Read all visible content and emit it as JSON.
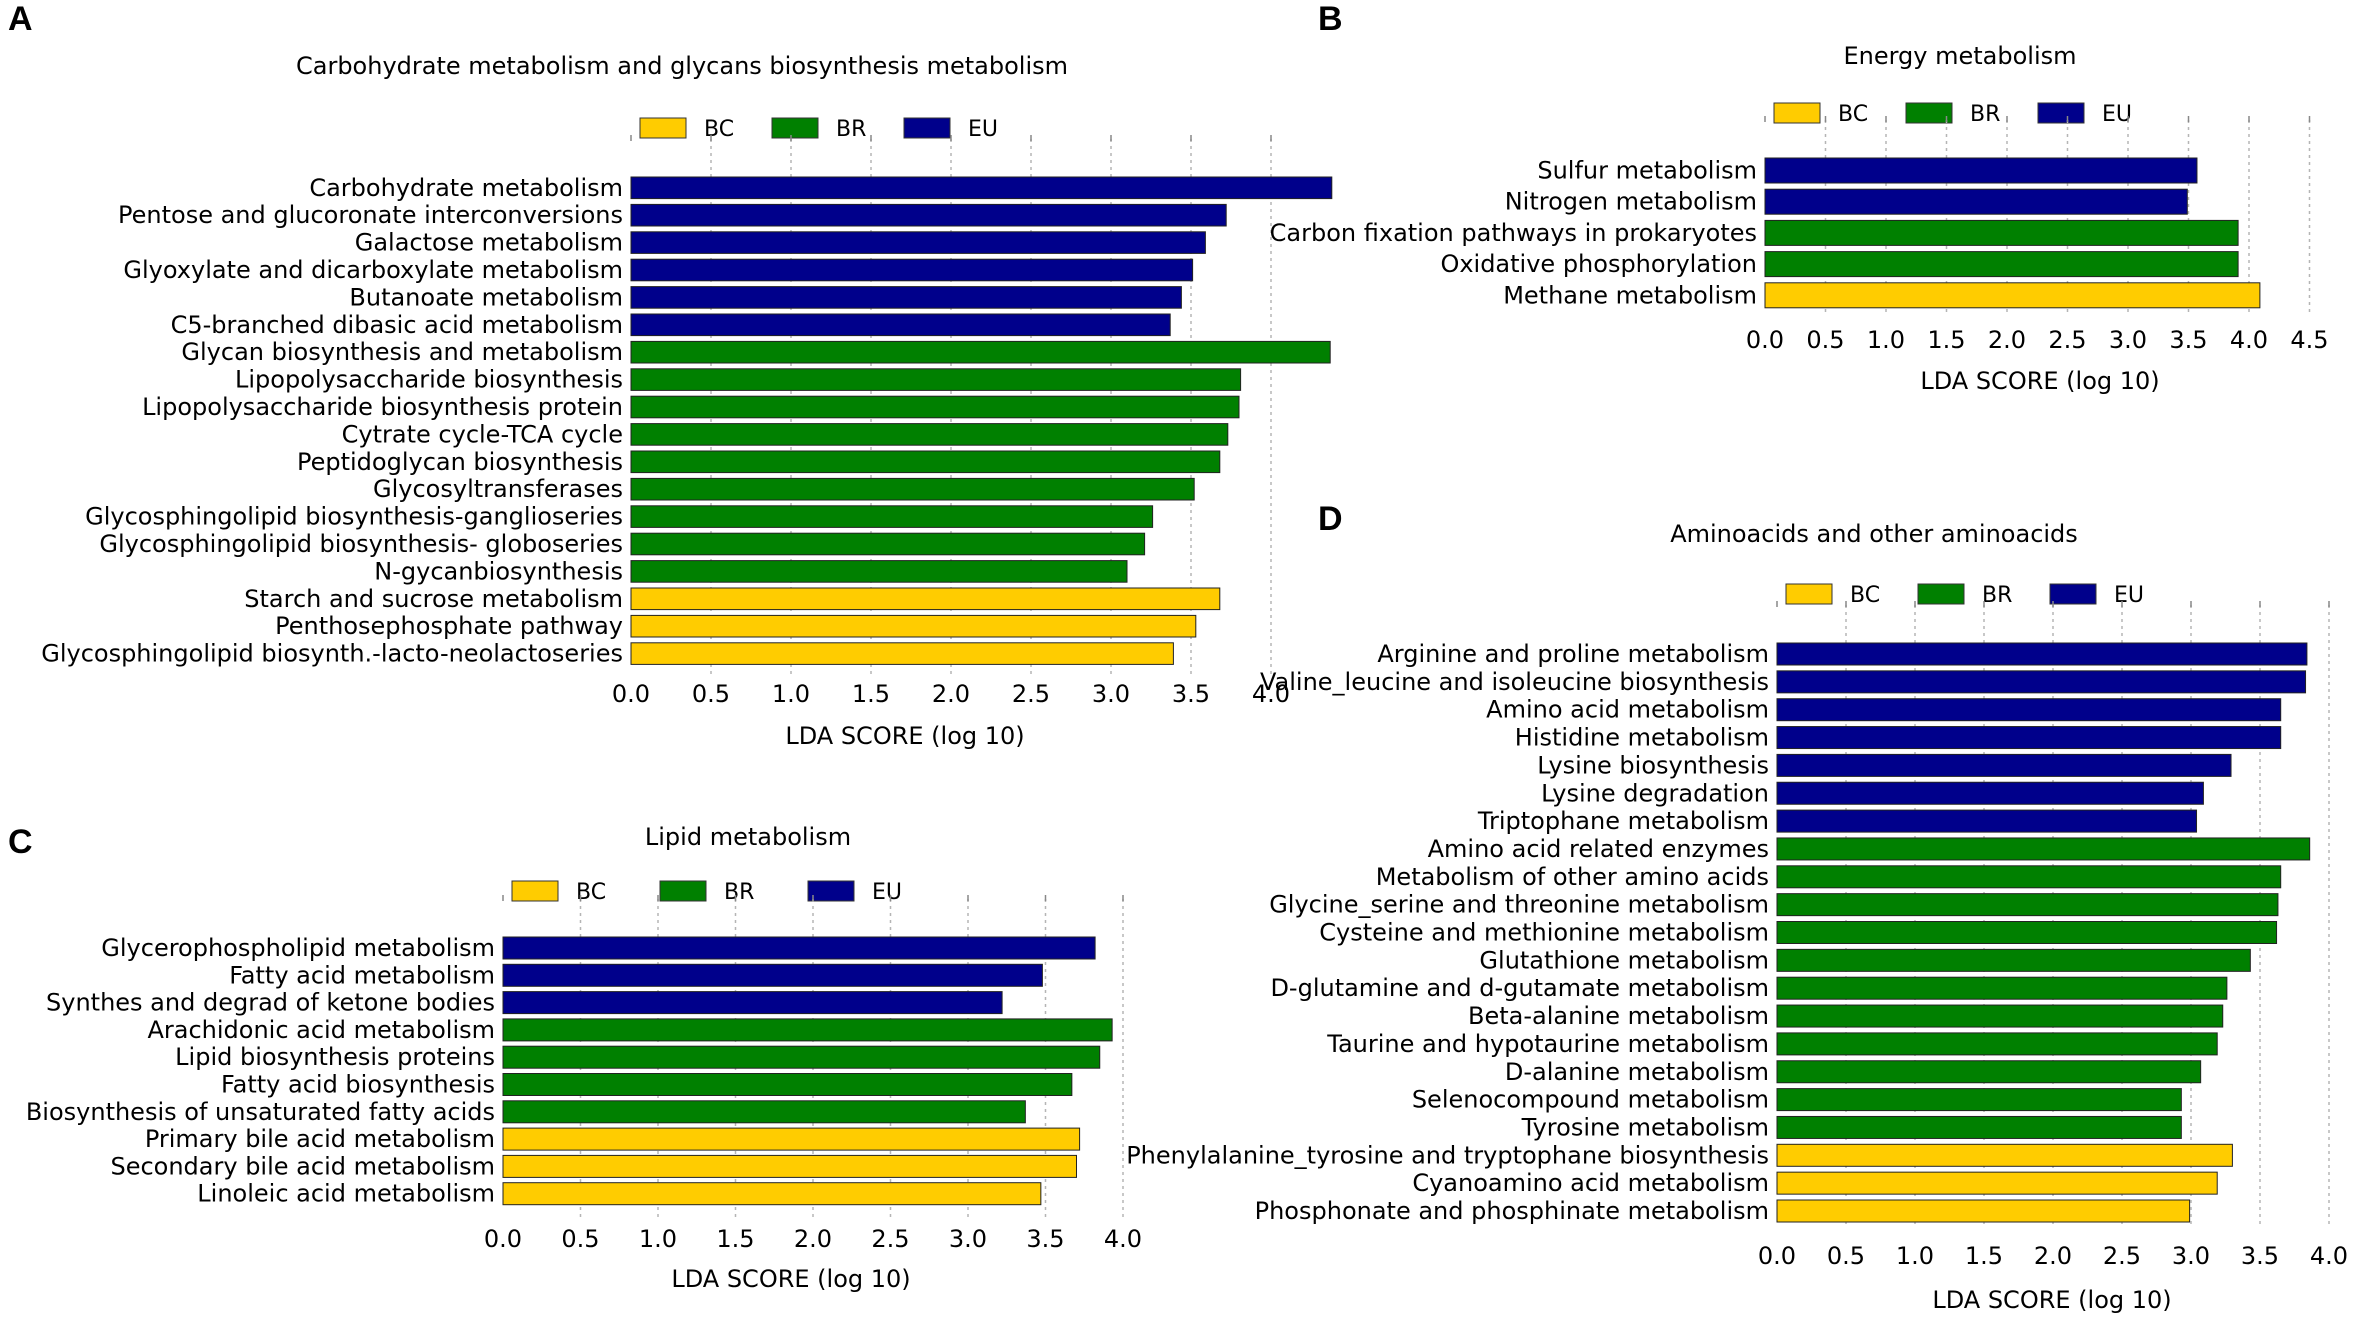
{
  "colors": {
    "BC": "#ffcc00",
    "BR": "#008000",
    "EU": "#00008b"
  },
  "chart_data": [
    {
      "panel": "A",
      "type": "bar",
      "orientation": "horizontal",
      "title": "Carbohydrate metabolism and glycans biosynthesis metabolism",
      "xlabel": "LDA SCORE (log 10)",
      "xlim": [
        0,
        4.4
      ],
      "xticks": [
        "0.0",
        "0.5",
        "1.0",
        "1.5",
        "2.0",
        "2.5",
        "3.0",
        "3.5",
        "4.0"
      ],
      "legend": [
        "BC",
        "BR",
        "EU"
      ],
      "categories": [
        "Carbohydrate metabolism",
        "Pentose and glucoronate interconversions",
        "Galactose metabolism",
        "Glyoxylate and dicarboxylate metabolism",
        "Butanoate metabolism",
        "C5-branched dibasic acid metabolism",
        "Glycan biosynthesis and metabolism",
        "Lipopolysaccharide biosynthesis",
        "Lipopolysaccharide biosynthesis protein",
        "Cytrate cycle-TCA cycle",
        "Peptidoglycan biosynthesis",
        "Glycosyltransferases",
        "Glycosphingolipid biosynthesis-ganglioseries",
        "Glycosphingolipid biosynthesis- globoseries",
        "N-gycanbiosynthesis",
        "Starch and sucrose metabolism",
        "Penthosephosphate pathway",
        "Glycosphingolipid biosynth.-lacto-neolactoseries"
      ],
      "values": [
        4.38,
        3.72,
        3.59,
        3.51,
        3.44,
        3.37,
        4.37,
        3.81,
        3.8,
        3.73,
        3.68,
        3.52,
        3.26,
        3.21,
        3.1,
        3.68,
        3.53,
        3.39
      ],
      "groups": [
        "EU",
        "EU",
        "EU",
        "EU",
        "EU",
        "EU",
        "BR",
        "BR",
        "BR",
        "BR",
        "BR",
        "BR",
        "BR",
        "BR",
        "BR",
        "BC",
        "BC",
        "BC"
      ]
    },
    {
      "panel": "B",
      "type": "bar",
      "orientation": "horizontal",
      "title": "Energy metabolism",
      "xlabel": "LDA SCORE (log 10)",
      "xlim": [
        0,
        4.7
      ],
      "xticks": [
        "0.0",
        "0.5",
        "1.0",
        "1.5",
        "2.0",
        "2.5",
        "3.0",
        "3.5",
        "4.0",
        "4.5"
      ],
      "legend": [
        "BC",
        "BR",
        "EU"
      ],
      "categories": [
        "Sulfur metabolism",
        "Nitrogen metabolism",
        "Carbon fixation pathways in prokaryotes",
        "Oxidative phosphorylation",
        "Methane metabolism"
      ],
      "values": [
        3.57,
        3.49,
        3.91,
        3.91,
        4.09
      ],
      "groups": [
        "EU",
        "EU",
        "BR",
        "BR",
        "BC"
      ]
    },
    {
      "panel": "C",
      "type": "bar",
      "orientation": "horizontal",
      "title": "Lipid metabolism",
      "xlabel": "LDA SCORE (log 10)",
      "xlim": [
        0,
        4.2
      ],
      "xticks": [
        "0.0",
        "0.5",
        "1.0",
        "1.5",
        "2.0",
        "2.5",
        "3.0",
        "3.5",
        "4.0"
      ],
      "legend": [
        "BC",
        "BR",
        "EU"
      ],
      "categories": [
        "Glycerophospholipid metabolism",
        "Fatty acid metabolism",
        "Synthes and degrad of ketone bodies",
        "Arachidonic acid metabolism",
        "Lipid biosynthesis proteins",
        "Fatty acid biosynthesis",
        "Biosynthesis of unsaturated fatty acids",
        "Primary bile acid metabolism",
        "Secondary bile acid metabolism",
        "Linoleic acid metabolism"
      ],
      "values": [
        3.82,
        3.48,
        3.22,
        3.93,
        3.85,
        3.67,
        3.37,
        3.72,
        3.7,
        3.47
      ],
      "groups": [
        "EU",
        "EU",
        "EU",
        "BR",
        "BR",
        "BR",
        "BR",
        "BC",
        "BC",
        "BC"
      ]
    },
    {
      "panel": "D",
      "type": "bar",
      "orientation": "horizontal",
      "title": "Aminoacids and other aminoacids",
      "xlabel": "LDA SCORE (log 10)",
      "xlim": [
        0,
        4.1
      ],
      "xticks": [
        "0.0",
        "0.5",
        "1.0",
        "1.5",
        "2.0",
        "2.5",
        "3.0",
        "3.5",
        "4.0"
      ],
      "legend": [
        "BC",
        "BR",
        "EU"
      ],
      "categories": [
        "Arginine and proline metabolism",
        "Valine_leucine and isoleucine biosynthesis",
        "Amino acid metabolism",
        "Histidine metabolism",
        "Lysine biosynthesis",
        "Lysine degradation",
        "Triptophane metabolism",
        "Amino acid related enzymes",
        "Metabolism of other amino acids",
        "Glycine_serine and threonine metabolism",
        "Cysteine and methionine metabolism",
        "Glutathione metabolism",
        "D-glutamine and d-gutamate metabolism",
        "Beta-alanine metabolism",
        "Taurine and hypotaurine metabolism",
        "D-alanine metabolism",
        "Selenocompound metabolism",
        "Tyrosine metabolism",
        "Phenylalanine_tyrosine and tryptophane biosynthesis",
        "Cyanoamino acid metabolism",
        "Phosphonate and phosphinate metabolism"
      ],
      "values": [
        3.84,
        3.83,
        3.65,
        3.65,
        3.29,
        3.09,
        3.04,
        3.86,
        3.65,
        3.63,
        3.62,
        3.43,
        3.26,
        3.23,
        3.19,
        3.07,
        2.93,
        2.93,
        3.3,
        3.19,
        2.99
      ],
      "groups": [
        "EU",
        "EU",
        "EU",
        "EU",
        "EU",
        "EU",
        "EU",
        "BR",
        "BR",
        "BR",
        "BR",
        "BR",
        "BR",
        "BR",
        "BR",
        "BR",
        "BR",
        "BR",
        "BC",
        "BC",
        "BC"
      ]
    }
  ]
}
